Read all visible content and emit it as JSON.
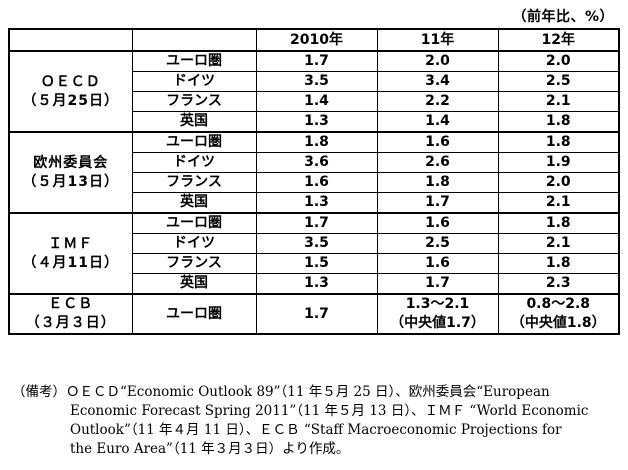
{
  "unit": "（前年比、%）",
  "header": {
    "blank": "",
    "blank2": "",
    "y2010": "2010年",
    "y2011": "11年",
    "y2012": "12年"
  },
  "groups": [
    {
      "org": "ＯＥＣＤ",
      "date": "（５月25日）",
      "rows": [
        {
          "region": "ユーロ圏",
          "v2010": "1.7",
          "v2011": "2.0",
          "v2012": "2.0"
        },
        {
          "region": "ドイツ",
          "v2010": "3.5",
          "v2011": "3.4",
          "v2012": "2.5"
        },
        {
          "region": "フランス",
          "v2010": "1.4",
          "v2011": "2.2",
          "v2012": "2.1"
        },
        {
          "region": "英国",
          "v2010": "1.3",
          "v2011": "1.4",
          "v2012": "1.8"
        }
      ]
    },
    {
      "org": "欧州委員会",
      "date": "（５月13日）",
      "rows": [
        {
          "region": "ユーロ圏",
          "v2010": "1.8",
          "v2011": "1.6",
          "v2012": "1.8"
        },
        {
          "region": "ドイツ",
          "v2010": "3.6",
          "v2011": "2.6",
          "v2012": "1.9"
        },
        {
          "region": "フランス",
          "v2010": "1.6",
          "v2011": "1.8",
          "v2012": "2.0"
        },
        {
          "region": "英国",
          "v2010": "1.3",
          "v2011": "1.7",
          "v2012": "2.1"
        }
      ]
    },
    {
      "org": "ＩＭＦ",
      "date": "（４月11日）",
      "rows": [
        {
          "region": "ユーロ圏",
          "v2010": "1.7",
          "v2011": "1.6",
          "v2012": "1.8"
        },
        {
          "region": "ドイツ",
          "v2010": "3.5",
          "v2011": "2.5",
          "v2012": "2.1"
        },
        {
          "region": "フランス",
          "v2010": "1.5",
          "v2011": "1.6",
          "v2012": "1.8"
        },
        {
          "region": "英国",
          "v2010": "1.3",
          "v2011": "1.7",
          "v2012": "2.3"
        }
      ]
    }
  ],
  "ecb": {
    "org": "ＥＣＢ",
    "date": "（３月３日）",
    "region": "ユーロ圏",
    "v2010": "1.7",
    "v2011_range": "1.3～2.1",
    "v2011_mid": "（中央値1.7）",
    "v2012_range": "0.8～2.8",
    "v2012_mid": "（中央値1.8）"
  },
  "notes": {
    "line1": "（備考）ＯＥＣＤ“Economic Outlook 89”（11 年５月 25 日）、欧州委員会“European",
    "line2": "Economic Forecast Spring 2011”（11 年５月 13 日）、ＩＭＦ “World Economic",
    "line3": "Outlook”（11 年４月 11 日）、ＥＣＢ “Staff Macroeconomic Projections for",
    "line4": "the Euro Area”（11 年３月３日）より作成。"
  }
}
